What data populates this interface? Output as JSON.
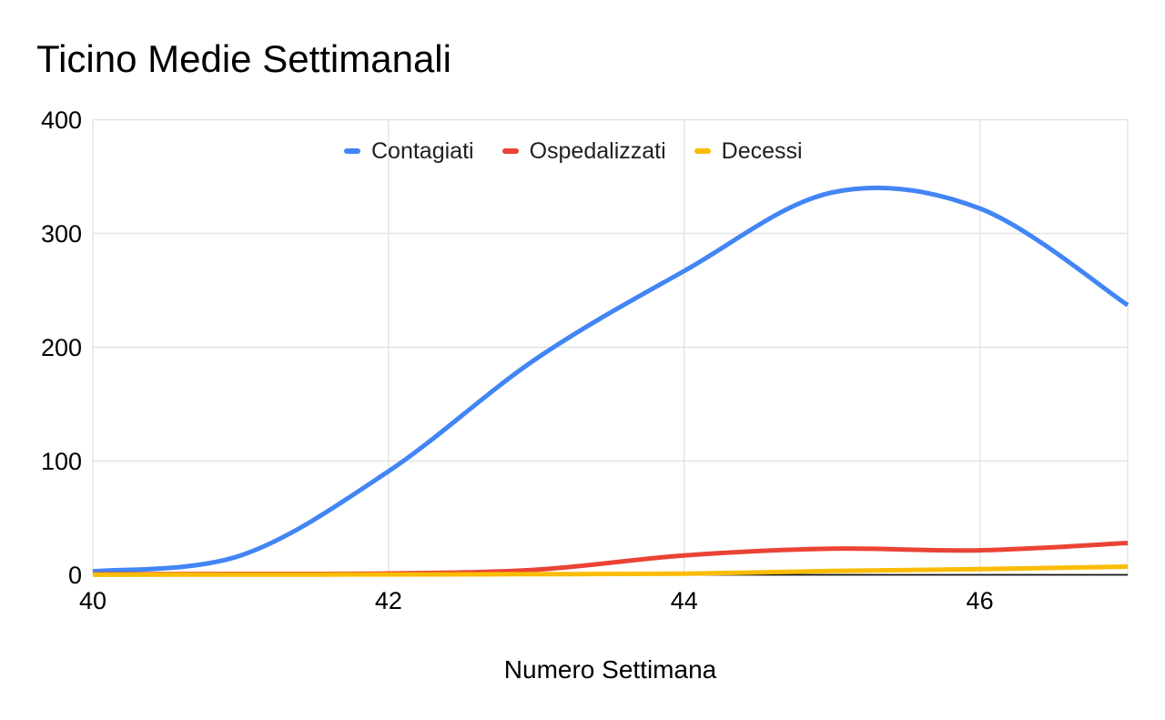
{
  "title": "Ticino Medie Settimanali",
  "x_axis_title": "Numero Settimana",
  "colors": {
    "background": "#ffffff",
    "gridline": "#e3e3e3",
    "axis_line": "#111111",
    "tick_label": "#000000",
    "title_text": "#000000",
    "legend_text": "#1f1f1f"
  },
  "chart_data": {
    "type": "line",
    "smooth": true,
    "title": "Ticino Medie Settimanali",
    "xlabel": "Numero Settimana",
    "ylabel": "",
    "x": [
      40,
      41,
      42,
      43,
      44,
      45,
      46,
      47
    ],
    "series": [
      {
        "name": "Contagiati",
        "color": "#4285F4",
        "values": [
          3,
          17,
          91,
          190,
          267,
          336,
          322,
          237
        ]
      },
      {
        "name": "Ospedalizzati",
        "color": "#EA4335",
        "values": [
          0.4,
          0.8,
          1.2,
          4.5,
          17,
          23,
          21.5,
          28
        ]
      },
      {
        "name": "Decessi",
        "color": "#FBBC04",
        "values": [
          0.1,
          0.2,
          0.3,
          0.6,
          1,
          3.4,
          5,
          7.2
        ]
      }
    ],
    "xlim": [
      40,
      47
    ],
    "ylim": [
      0,
      400
    ],
    "x_ticks": [
      40,
      42,
      44,
      46
    ],
    "y_ticks": [
      0,
      100,
      200,
      300,
      400
    ],
    "grid": true,
    "legend_position": "top-center"
  }
}
